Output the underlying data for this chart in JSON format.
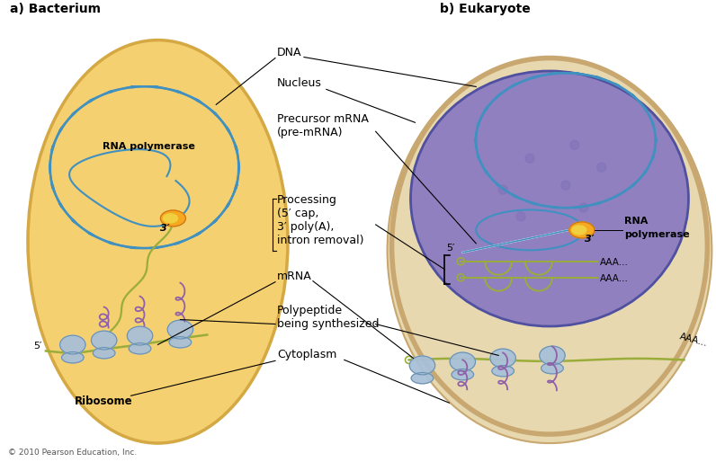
{
  "title_a": "a) Bacterium",
  "title_b": "b) Eukaryote",
  "bg_color": "#ffffff",
  "cell_a_color": "#F5D070",
  "cell_a_border": "#D4A843",
  "cell_b_outer_color": "#E8D8B0",
  "cell_b_outer_border": "#C8A870",
  "nucleus_color": "#9080C0",
  "nucleus_border": "#7060A0",
  "dna_color": "#4090C0",
  "mrna_green": "#9AAD3A",
  "mrna_blue": "#4090C0",
  "ribosome_color": "#A8C0D8",
  "ribosome_border": "#6890B0",
  "polymerase_color": "#F5A820",
  "polymerase_inner": "#F0D040",
  "polypeptide_color": "#9060A8",
  "dot_color": "#8070A8",
  "label_dna": "DNA",
  "label_nucleus": "Nucleus",
  "label_precursor": "Precursor mRNA",
  "label_premrna": "(pre-mRNA)",
  "label_processing": "Processing",
  "label_processing2": "(5′ cap,",
  "label_processing3": "3′ poly(A),",
  "label_processing4": "intron removal)",
  "label_mrna": "mRNA",
  "label_polypeptide": "Polypeptide",
  "label_polypeptide2": "being synthesized",
  "label_cytoplasm": "Cytoplasm",
  "label_ribosome": "Ribosome",
  "label_rna_pol_a": "RNA polymerase",
  "label_rna_pol_b1": "RNA",
  "label_rna_pol_b2": "polymerase",
  "label_3prime_a": "3′",
  "label_3prime_b": "3′",
  "label_5prime_a": "5′",
  "label_5prime_b": "5′",
  "label_aaa1": "AAA...",
  "label_aaa2": "AAA...",
  "label_aaa3": "AAA...",
  "copyright": "© 2010 Pearson Education, Inc."
}
